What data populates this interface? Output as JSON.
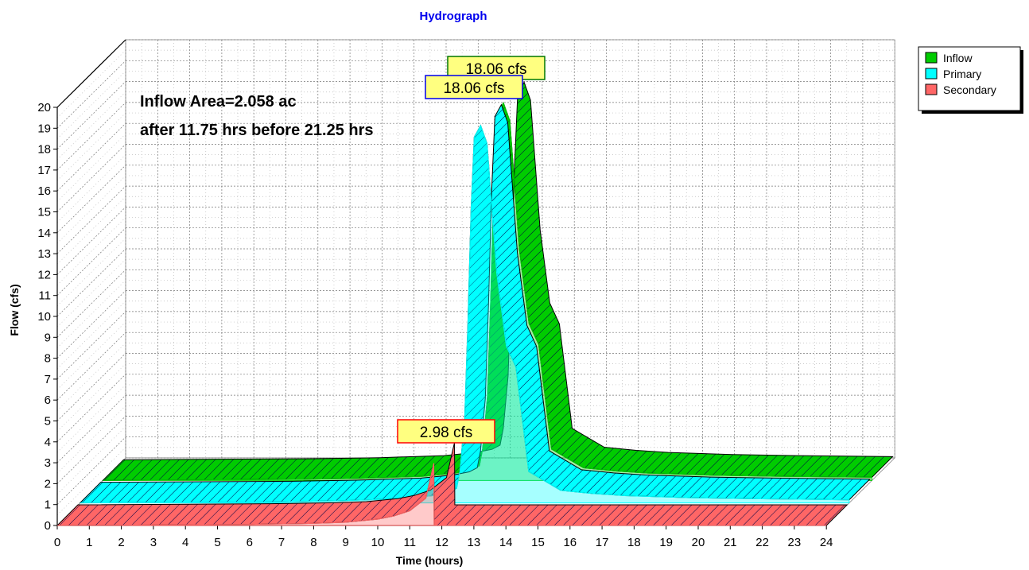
{
  "chart_data": {
    "type": "area",
    "title": "Hydrograph",
    "xlabel": "Time  (hours)",
    "ylabel": "Flow  (cfs)",
    "xlim": [
      0,
      24
    ],
    "ylim": [
      0,
      20
    ],
    "x_ticks": [
      "0",
      "1",
      "2",
      "3",
      "4",
      "5",
      "6",
      "7",
      "8",
      "9",
      "10",
      "11",
      "12",
      "13",
      "14",
      "15",
      "16",
      "17",
      "18",
      "19",
      "20",
      "21",
      "22",
      "23",
      "24"
    ],
    "y_ticks": [
      "0",
      "1",
      "2",
      "3",
      "4",
      "5",
      "6",
      "7",
      "8",
      "9",
      "10",
      "11",
      "12",
      "13",
      "14",
      "15",
      "16",
      "17",
      "18",
      "19",
      "20"
    ],
    "grid": true,
    "style": "3d-offset",
    "legend_position": "top-right",
    "annotations": [
      "Inflow Area=2.058 ac",
      "after 11.75 hrs before 21.25 hrs"
    ],
    "series": [
      {
        "name": "Inflow",
        "color": "#00cc00",
        "peak_label": "18.06 cfs",
        "x": [
          0,
          6,
          8,
          10,
          11,
          11.5,
          11.75,
          11.85,
          12,
          12.1,
          12.2,
          12.3,
          12.5,
          12.7,
          13,
          13.3,
          13.6,
          14,
          15,
          16,
          17,
          19,
          21,
          24
        ],
        "y": [
          0,
          0.05,
          0.1,
          0.2,
          0.35,
          0.5,
          0.7,
          1.5,
          4,
          8.5,
          14,
          17.5,
          18.06,
          17.2,
          11,
          7.5,
          6.5,
          1.5,
          0.6,
          0.45,
          0.35,
          0.25,
          0.2,
          0.15
        ]
      },
      {
        "name": "Primary",
        "color": "#00ffff",
        "peak_label": "18.06 cfs",
        "x": [
          0,
          6,
          8,
          10,
          11,
          11.5,
          11.75,
          11.85,
          12,
          12.1,
          12.2,
          12.3,
          12.5,
          12.7,
          13,
          13.3,
          13.6,
          14,
          15,
          16,
          17,
          19,
          21,
          24
        ],
        "y": [
          0,
          0.05,
          0.1,
          0.2,
          0.35,
          0.5,
          0.7,
          1.5,
          4,
          8.5,
          14,
          17.5,
          18.06,
          17.2,
          11,
          7.5,
          6.5,
          1.5,
          0.6,
          0.45,
          0.35,
          0.25,
          0.2,
          0.15
        ]
      },
      {
        "name": "Secondary",
        "color": "#ff6666",
        "peak_label": "2.98 cfs",
        "x": [
          0,
          6,
          8,
          9,
          10,
          10.5,
          11,
          11.5,
          11.75,
          11.76,
          24
        ],
        "y": [
          0,
          0.05,
          0.1,
          0.15,
          0.3,
          0.45,
          0.7,
          1.3,
          2.98,
          0,
          0
        ]
      }
    ]
  }
}
